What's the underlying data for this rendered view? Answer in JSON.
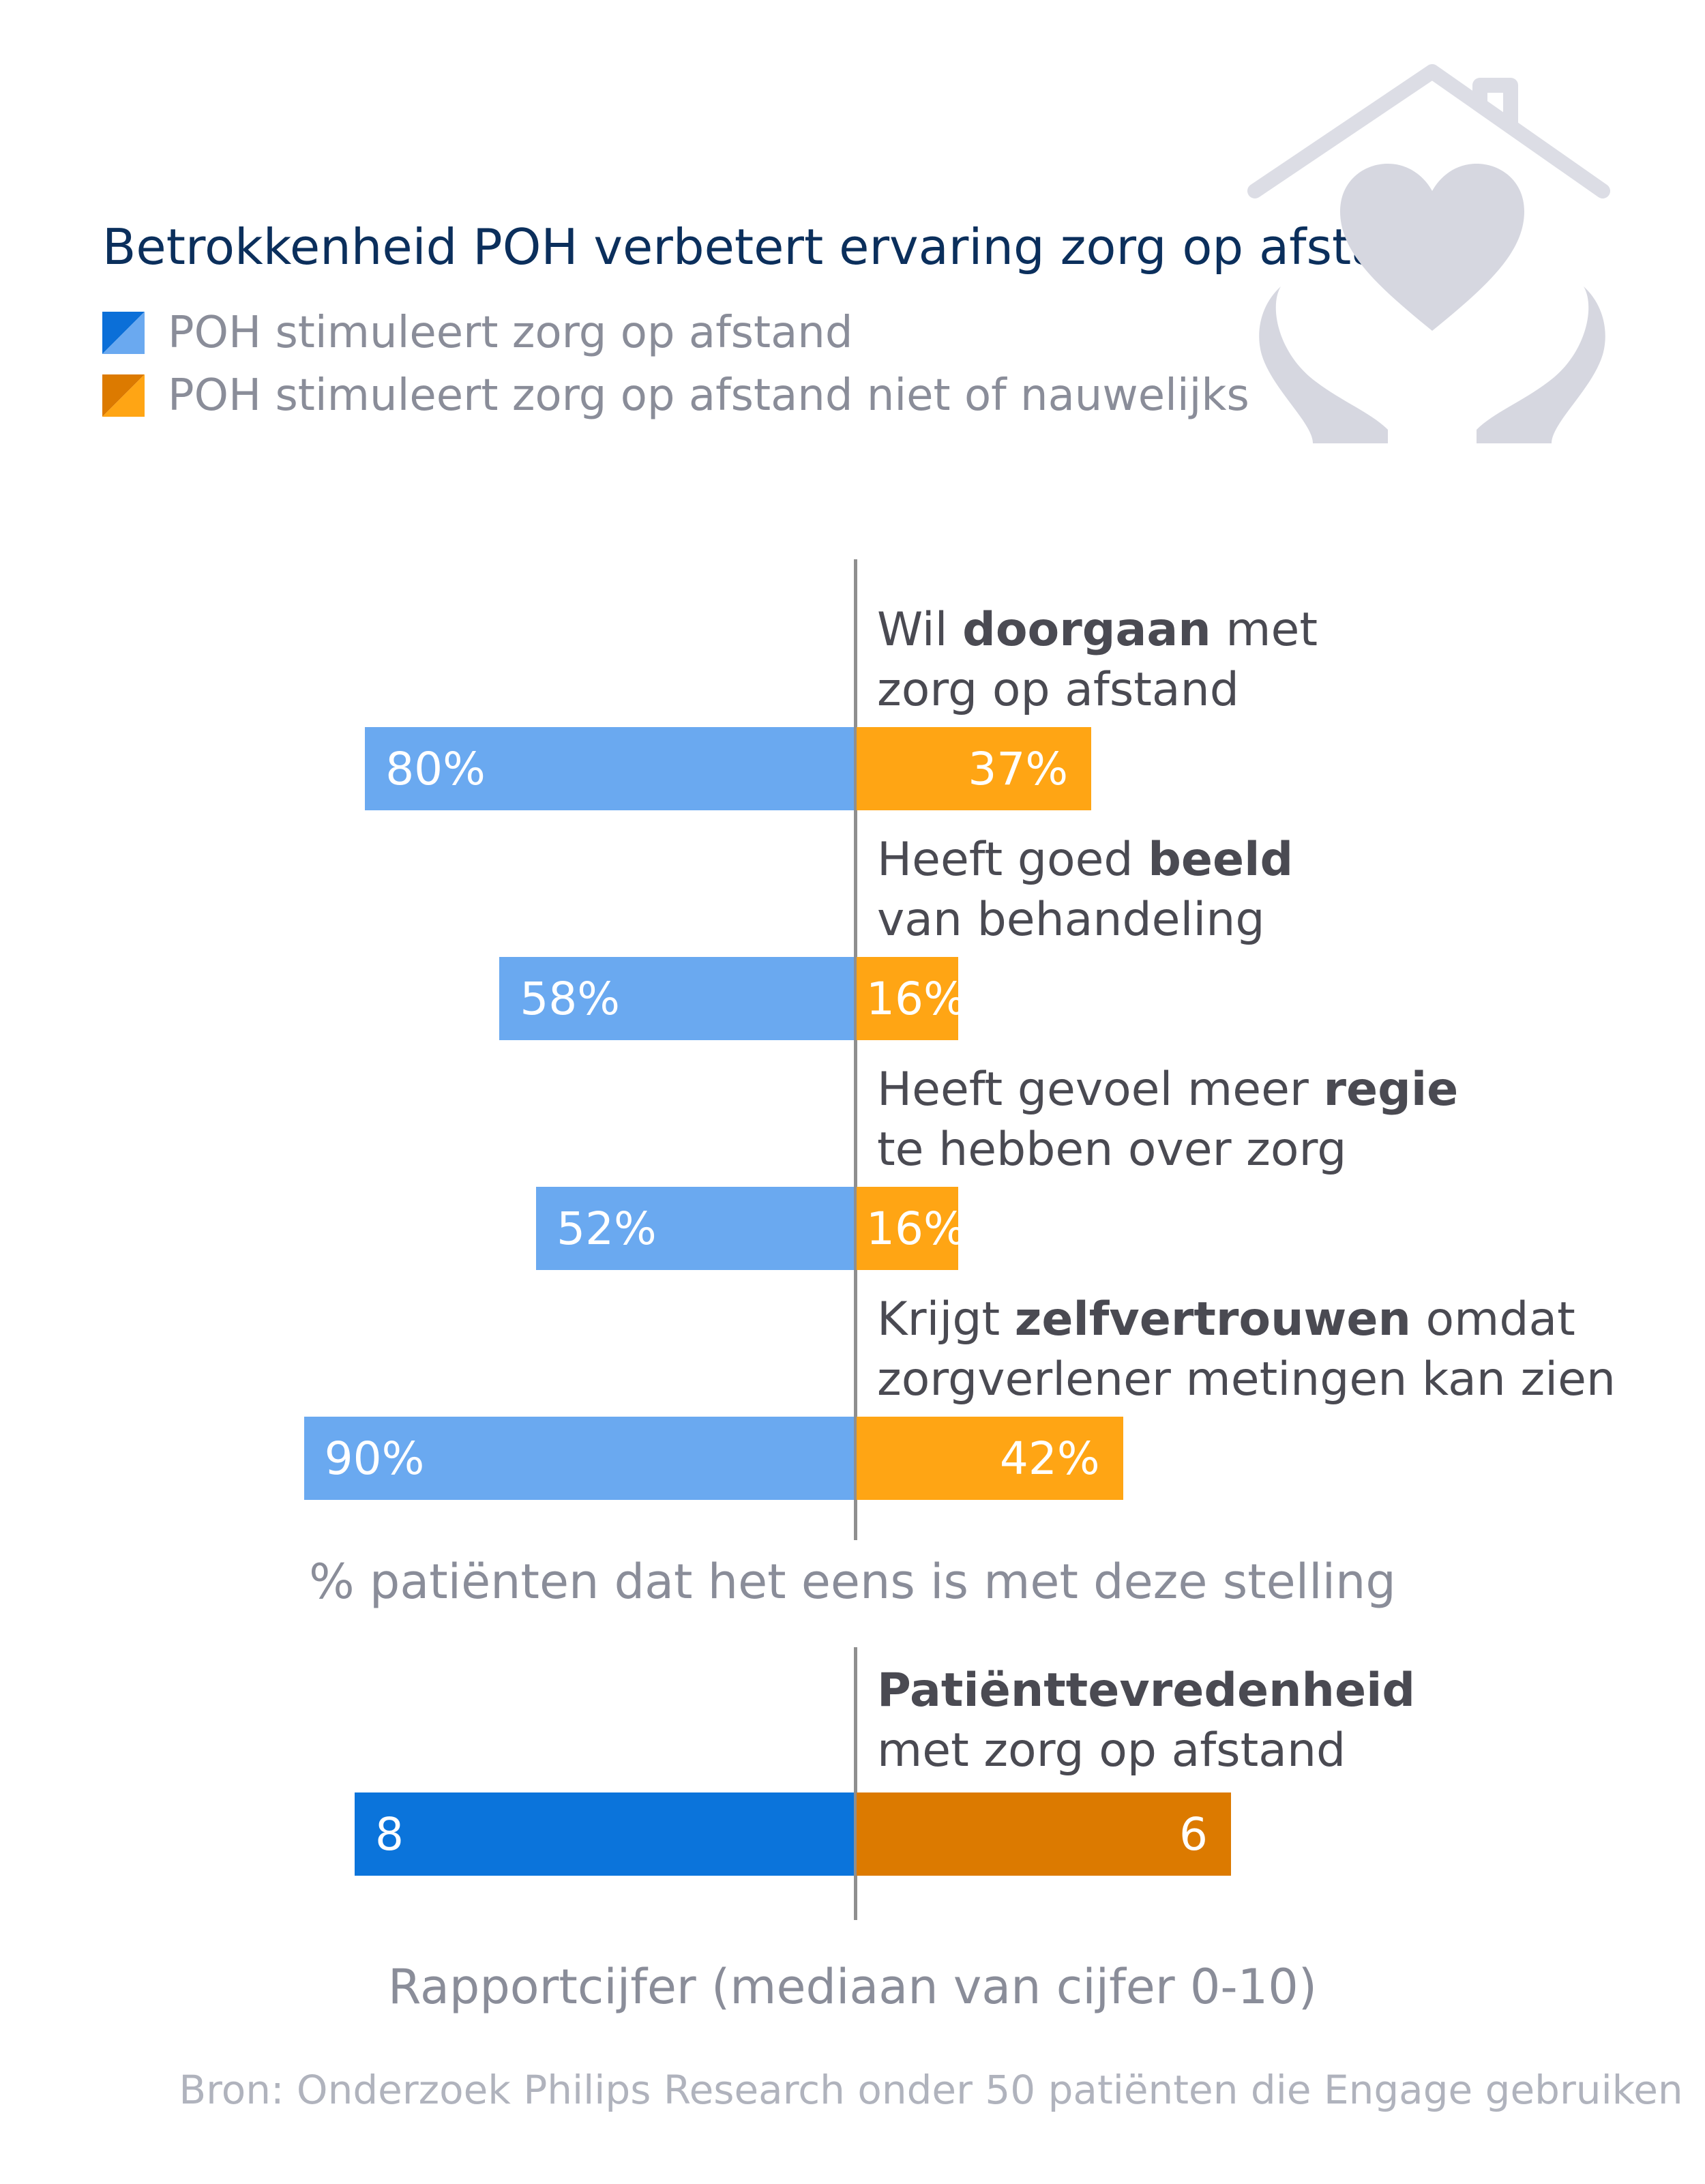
{
  "title": "Betrokkenheid POH verbetert ervaring zorg op afstand",
  "legend": [
    {
      "label": "POH stimuleert zorg op afstand",
      "color_dark": "#0b6fd8",
      "color_light": "#6aa9f0"
    },
    {
      "label": "POH stimuleert zorg op afstand niet of nauwelijks",
      "color_dark": "#dc7a00",
      "color_light": "#ffa514"
    }
  ],
  "icon": "house-heart-hands-icon",
  "chart_data": [
    {
      "type": "bar",
      "orientation": "horizontal-diverging",
      "unit": "%",
      "xlim": [
        0,
        100
      ],
      "categories": [
        {
          "pre": "Wil ",
          "bold": "doorgaan",
          "post": " met",
          "line2": "zorg op afstand"
        },
        {
          "pre": "Heeft goed ",
          "bold": "beeld",
          "post": "",
          "line2": "van behandeling"
        },
        {
          "pre": "Heeft gevoel meer ",
          "bold": "regie",
          "post": "",
          "line2": "te hebben over zorg"
        },
        {
          "pre": "Krijgt ",
          "bold": "zelfvertrouwen",
          "post": " omdat",
          "line2": "zorgverlener metingen kan zien"
        }
      ],
      "series": [
        {
          "name": "POH stimuleert zorg op afstand",
          "side": "left",
          "color": "#6aa9f0",
          "values": [
            80,
            58,
            52,
            90
          ],
          "labels": [
            "80%",
            "58%",
            "52%",
            "90%"
          ]
        },
        {
          "name": "POH stimuleert zorg op afstand niet of nauwelijks",
          "side": "right",
          "color": "#ffa514",
          "values": [
            37,
            16,
            16,
            42
          ],
          "labels": [
            "37%",
            "16%",
            "16%",
            "42%"
          ]
        }
      ],
      "xlabel": "% patiënten dat het eens is met deze stelling"
    },
    {
      "type": "bar",
      "orientation": "horizontal-diverging",
      "xlim": [
        0,
        10
      ],
      "categories": [
        {
          "bold": "Patiënttevredenheid",
          "line2": "met zorg op afstand"
        }
      ],
      "series": [
        {
          "name": "POH stimuleert zorg op afstand",
          "side": "left",
          "color": "#0b74db",
          "values": [
            8
          ],
          "labels": [
            "8"
          ]
        },
        {
          "name": "POH stimuleert zorg op afstand niet of nauwelijks",
          "side": "right",
          "color": "#dc7a00",
          "values": [
            6
          ],
          "labels": [
            "6"
          ]
        }
      ],
      "xlabel": "Rapportcijfer (mediaan van cijfer 0-10)"
    }
  ],
  "source": "Bron: Onderzoek Philips Research onder 50 patiënten die Engage gebruiken"
}
